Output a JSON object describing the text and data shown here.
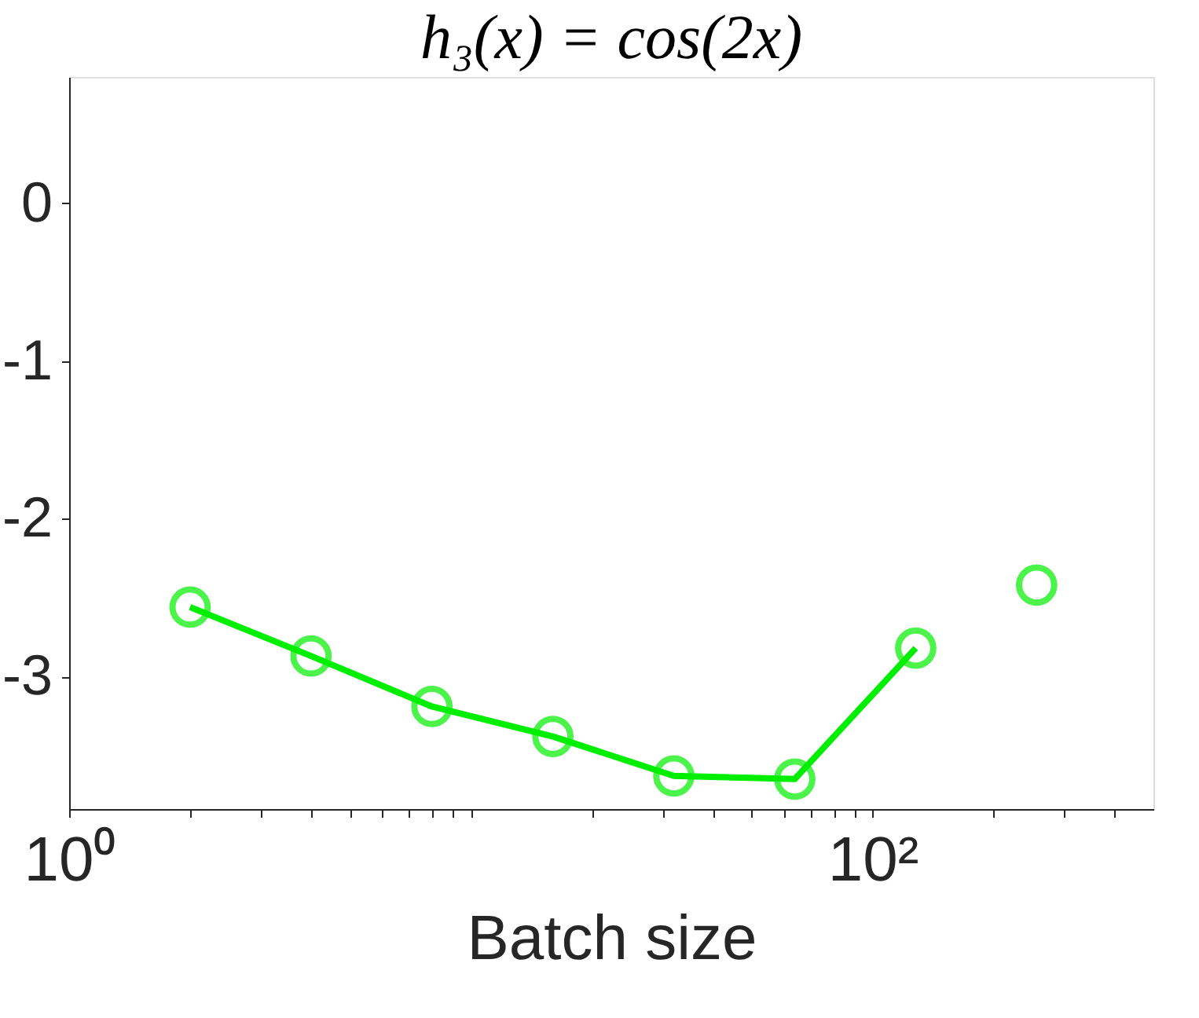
{
  "chart_data": {
    "type": "line",
    "title": "h₃(x) = cos(2x)",
    "xlabel": "Batch size",
    "log": "x",
    "xlim": [
      1,
      500
    ],
    "ylim": [
      -3.84,
      0.8
    ],
    "xticks": [
      {
        "value": 1,
        "label": "10⁰"
      },
      {
        "value": 2,
        "label": null
      },
      {
        "value": 3,
        "label": null
      },
      {
        "value": 4,
        "label": null
      },
      {
        "value": 5,
        "label": null
      },
      {
        "value": 6,
        "label": null
      },
      {
        "value": 7,
        "label": null
      },
      {
        "value": 8,
        "label": null
      },
      {
        "value": 9,
        "label": null
      },
      {
        "value": 10,
        "label": null
      },
      {
        "value": 20,
        "label": null
      },
      {
        "value": 30,
        "label": null
      },
      {
        "value": 40,
        "label": null
      },
      {
        "value": 50,
        "label": null
      },
      {
        "value": 60,
        "label": null
      },
      {
        "value": 70,
        "label": null
      },
      {
        "value": 80,
        "label": null
      },
      {
        "value": 90,
        "label": null
      },
      {
        "value": 100,
        "label": "10²"
      },
      {
        "value": 200,
        "label": null
      },
      {
        "value": 300,
        "label": null
      },
      {
        "value": 400,
        "label": null
      }
    ],
    "yticks": [
      0,
      -1,
      -2,
      -3
    ],
    "marker": "circle",
    "line_style": "solid",
    "grid": false,
    "series": [
      {
        "color": "#00ee00",
        "x": [
          2,
          4,
          8,
          16,
          32,
          64,
          128
        ],
        "values": [
          -2.56,
          -2.87,
          -3.19,
          -3.38,
          -3.63,
          -3.65,
          -2.82
        ]
      },
      {
        "type": "scatter",
        "color": "#00ee00",
        "x": [
          256
        ],
        "values": [
          -2.42
        ]
      }
    ]
  }
}
